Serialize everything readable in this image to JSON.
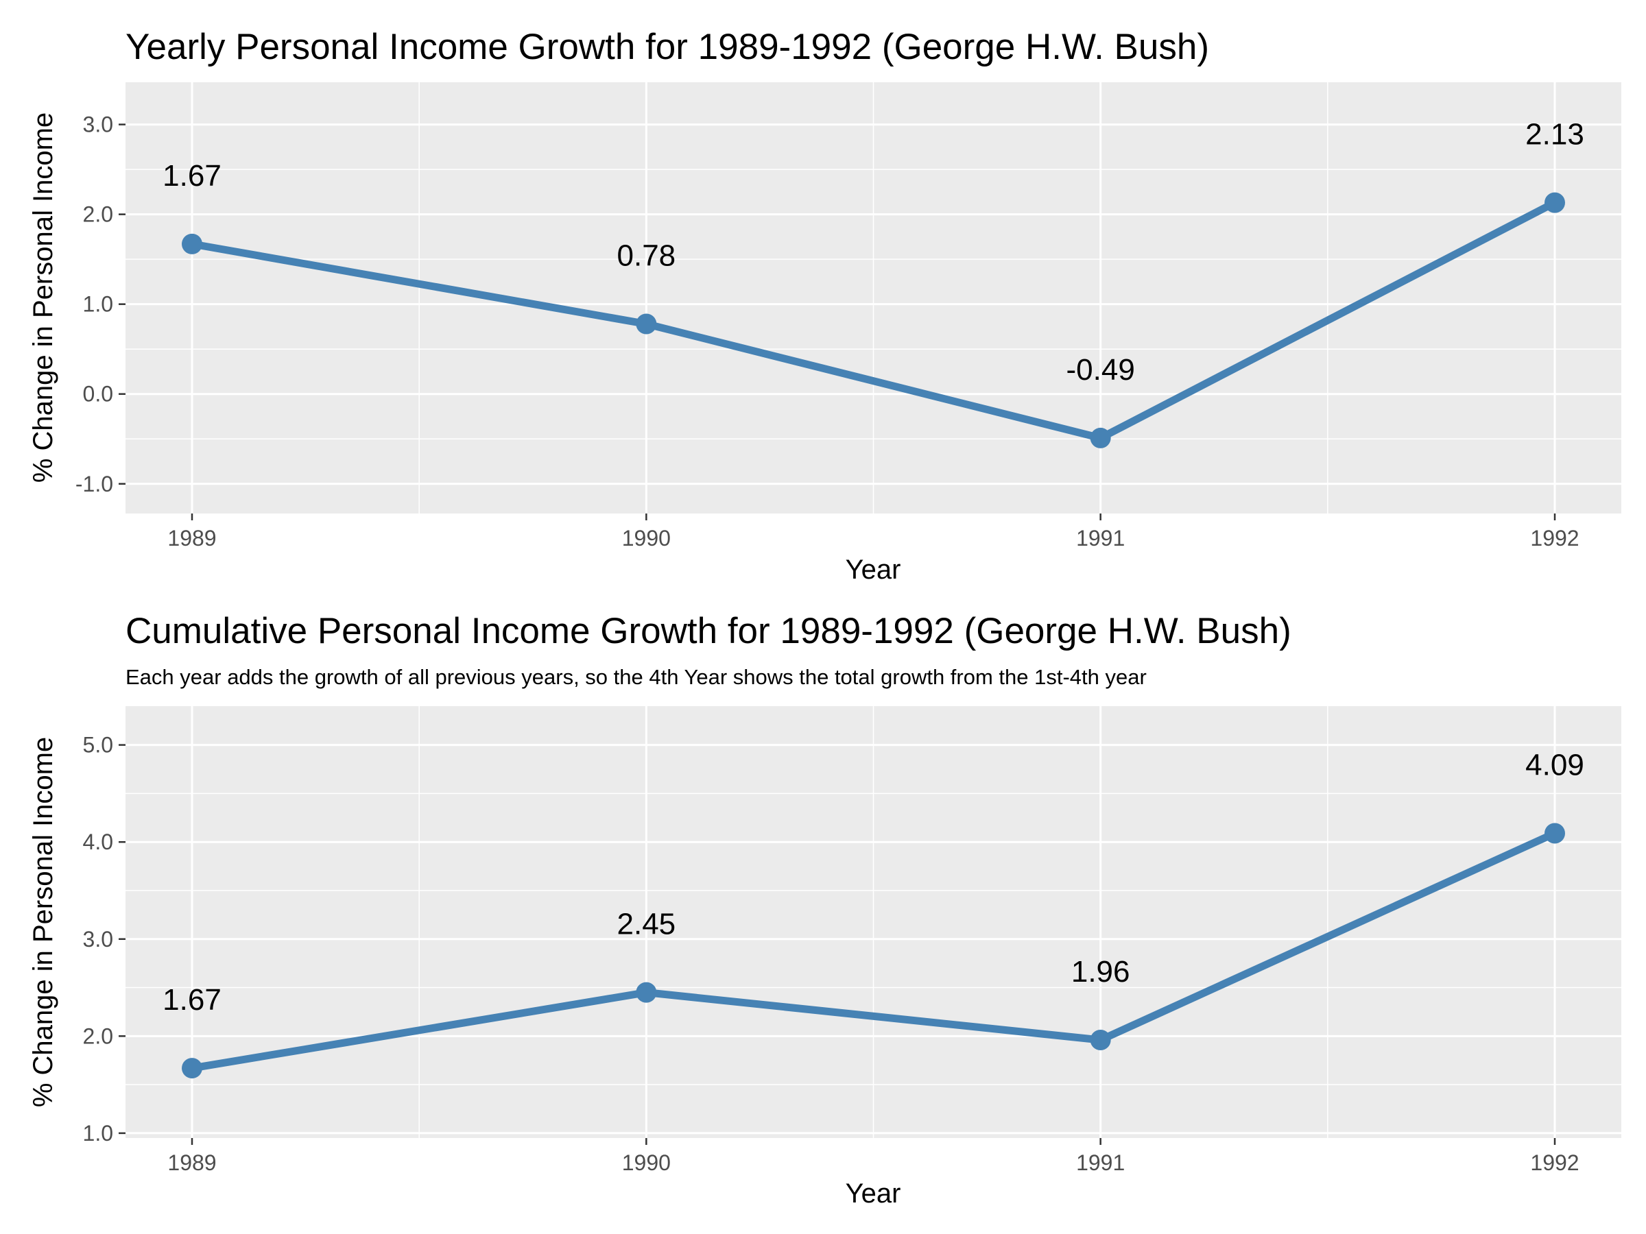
{
  "chart_data": [
    {
      "type": "line",
      "title": "Yearly Personal Income Growth for 1989-1992 (George H.W. Bush)",
      "subtitle": "",
      "xlabel": "Year",
      "ylabel": "% Change in Personal Income",
      "categories": [
        "1989",
        "1990",
        "1991",
        "1992"
      ],
      "values": [
        1.67,
        0.78,
        -0.49,
        2.13
      ],
      "data_labels": [
        "1.67",
        "0.78",
        "-0.49",
        "2.13"
      ],
      "yticks": [
        "-1.0",
        "0.0",
        "1.0",
        "2.0",
        "3.0"
      ],
      "ylim": [
        -1.33,
        3.47
      ],
      "grid": true,
      "legend": "none",
      "color": "#4682b4",
      "panel_color": "#ebebeb"
    },
    {
      "type": "line",
      "title": "Cumulative Personal Income Growth for 1989-1992 (George H.W. Bush)",
      "subtitle": "Each year adds the growth of all previous years, so the 4th Year shows the total growth from the 1st-4th year",
      "xlabel": "Year",
      "ylabel": "% Change in Personal Income",
      "categories": [
        "1989",
        "1990",
        "1991",
        "1992"
      ],
      "values": [
        1.67,
        2.45,
        1.96,
        4.09
      ],
      "data_labels": [
        "1.67",
        "2.45",
        "1.96",
        "4.09"
      ],
      "yticks": [
        "1.0",
        "2.0",
        "3.0",
        "4.0",
        "5.0"
      ],
      "ylim": [
        0.95,
        5.4
      ],
      "grid": true,
      "legend": "none",
      "color": "#4682b4",
      "panel_color": "#ebebeb"
    }
  ]
}
